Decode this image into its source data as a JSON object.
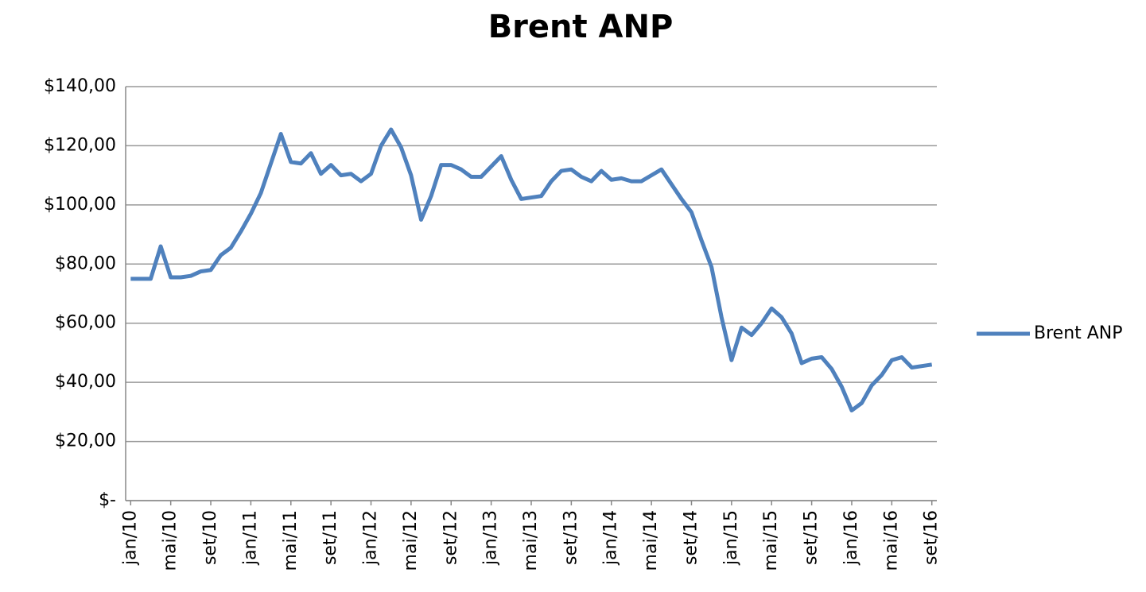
{
  "chart_data": {
    "type": "line",
    "title": "Brent ANP",
    "categories": [
      "jan/10",
      null,
      null,
      null,
      "mai/10",
      null,
      null,
      null,
      "set/10",
      null,
      null,
      null,
      "jan/11",
      null,
      null,
      null,
      "mai/11",
      null,
      null,
      null,
      "set/11",
      null,
      null,
      null,
      "jan/12",
      null,
      null,
      null,
      "mai/12",
      null,
      null,
      null,
      "set/12",
      null,
      null,
      null,
      "jan/13",
      null,
      null,
      null,
      "mai/13",
      null,
      null,
      null,
      "set/13",
      null,
      null,
      null,
      "jan/14",
      null,
      null,
      null,
      "mai/14",
      null,
      null,
      null,
      "set/14",
      null,
      null,
      null,
      "jan/15",
      null,
      null,
      null,
      "mai/15",
      null,
      null,
      null,
      "set/15",
      null,
      null,
      null,
      "jan/16",
      null,
      null,
      null,
      "mai/16",
      null,
      null,
      null,
      "set/16"
    ],
    "series": [
      {
        "name": "Brent ANP",
        "color": "#4f81bd",
        "values": [
          75,
          75,
          75,
          86,
          75.5,
          75.5,
          76,
          77.5,
          78,
          83,
          85.5,
          91,
          97,
          104,
          114,
          124,
          114.5,
          114,
          117.5,
          110.5,
          113.5,
          110,
          110.5,
          108,
          110.5,
          120,
          125.5,
          119.5,
          110,
          95,
          103,
          113.5,
          113.5,
          112,
          109.5,
          109.5,
          113,
          116.5,
          108.5,
          102,
          102.5,
          103,
          108,
          111.5,
          112,
          109.5,
          108,
          111.5,
          108.5,
          109,
          108,
          108,
          110,
          112,
          107,
          102,
          97.5,
          88,
          79,
          62,
          47.5,
          58.5,
          56,
          60,
          65,
          62,
          56.5,
          46.5,
          48,
          48.5,
          44.5,
          38.5,
          30.5,
          33,
          39,
          42.5,
          47.5,
          48.5,
          45,
          45.5,
          46
        ]
      }
    ],
    "ylim": [
      0,
      140
    ],
    "yticks": [
      {
        "value": 0,
        "label": "$-"
      },
      {
        "value": 20,
        "label": "$20,00"
      },
      {
        "value": 40,
        "label": "$40,00"
      },
      {
        "value": 60,
        "label": "$60,00"
      },
      {
        "value": 80,
        "label": "$80,00"
      },
      {
        "value": 100,
        "label": "$100,00"
      },
      {
        "value": 120,
        "label": "$120,00"
      },
      {
        "value": 140,
        "label": "$140,00"
      }
    ],
    "grid": true,
    "legend": "right"
  }
}
